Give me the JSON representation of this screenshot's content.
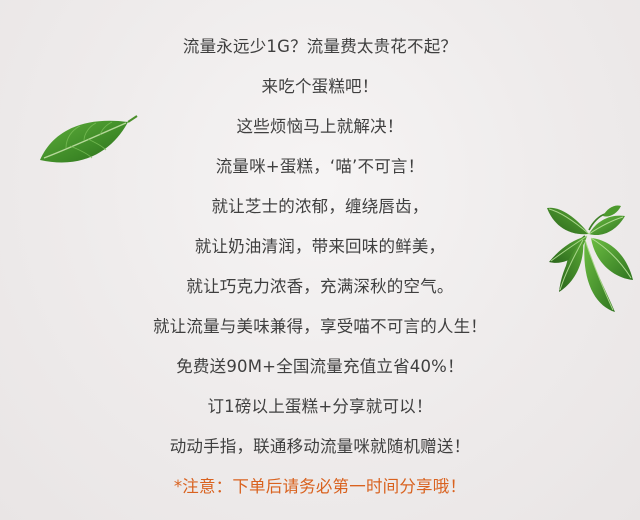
{
  "lines": [
    "流量永远少1G？流量费太贵花不起？",
    "来吃个蛋糕吧！",
    "这些烦恼马上就解决！",
    "流量咪+蛋糕，‘喵’不可言！",
    "就让芝士的浓郁，缠绕唇齿，",
    "就让奶油清润，带来回味的鲜美，",
    "就让巧克力浓香，充满深秋的空气。",
    "就让流量与美味兼得，享受喵不可言的人生！",
    "免费送90M+全国流量充值立省40%！",
    "订1磅以上蛋糕+分享就可以！",
    "动动手指，联通移动流量咪就随机赠送！"
  ],
  "note": "*注意：下单后请务必第一时间分享哦！",
  "colors": {
    "text": "#3f3f3f",
    "note": "#d9621f",
    "leaf": "#3f8a2a"
  },
  "icons": {
    "left": "green-leaf-icon",
    "right": "leaf-sprig-icon"
  }
}
